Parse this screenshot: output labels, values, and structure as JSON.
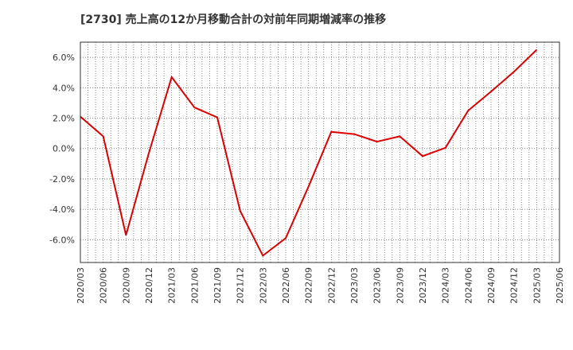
{
  "chart_data": {
    "type": "line",
    "title": "[2730]  売上高の12か月移動合計の対前年同期増減率の推移",
    "xlabel": "",
    "ylabel": "",
    "ylim": [
      -7.5,
      7.0
    ],
    "yticks": [
      -6,
      -4,
      -2,
      0,
      2,
      4,
      6
    ],
    "ytick_labels": [
      "-6.0%",
      "-4.0%",
      "-2.0%",
      "0.0%",
      "2.0%",
      "4.0%",
      "6.0%"
    ],
    "grid": true,
    "categories": [
      "2020/03",
      "2020/06",
      "2020/09",
      "2020/12",
      "2021/03",
      "2021/06",
      "2021/09",
      "2021/12",
      "2022/03",
      "2022/06",
      "2022/09",
      "2022/12",
      "2023/03",
      "2023/06",
      "2023/09",
      "2023/12",
      "2024/03",
      "2024/06",
      "2024/09",
      "2024/12",
      "2025/03",
      "2025/06"
    ],
    "series": [
      {
        "name": "増減率",
        "color": "#dd0000",
        "values": [
          2.1,
          0.8,
          -5.7,
          -0.3,
          4.7,
          2.7,
          2.05,
          -4.1,
          -7.05,
          -5.9,
          -2.5,
          1.1,
          0.95,
          0.45,
          0.8,
          -0.5,
          0.05,
          2.5,
          3.75,
          5.05,
          6.5,
          null
        ]
      }
    ]
  }
}
